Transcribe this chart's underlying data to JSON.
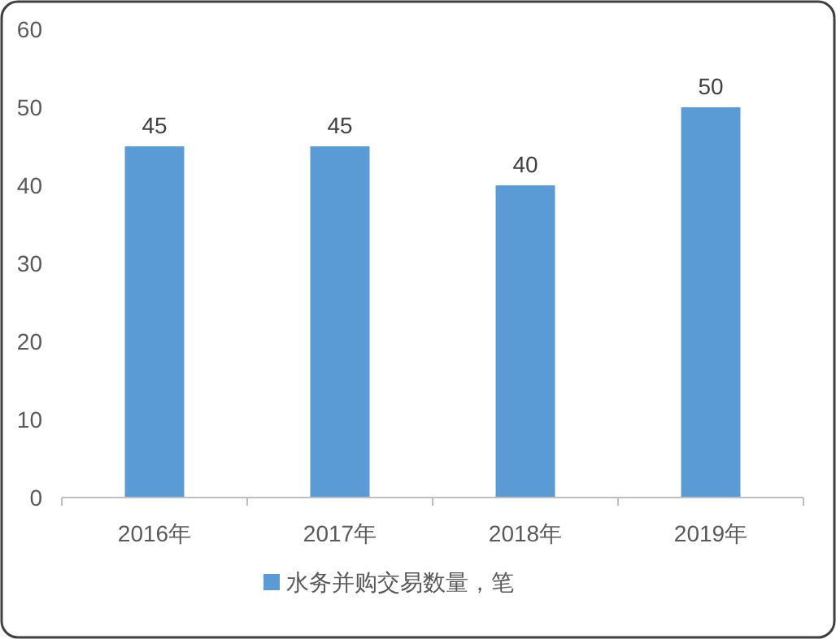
{
  "chart_data": {
    "type": "bar",
    "categories": [
      "2016年",
      "2017年",
      "2018年",
      "2019年"
    ],
    "series": [
      {
        "name": "水务并购交易数量，笔",
        "color": "#5b9bd5",
        "values": [
          45,
          45,
          40,
          50
        ]
      }
    ],
    "ylim": [
      0,
      60
    ],
    "yticks": [
      0,
      10,
      20,
      30,
      40,
      50,
      60
    ],
    "grid": false,
    "legend": "bottom",
    "data_labels": true
  }
}
